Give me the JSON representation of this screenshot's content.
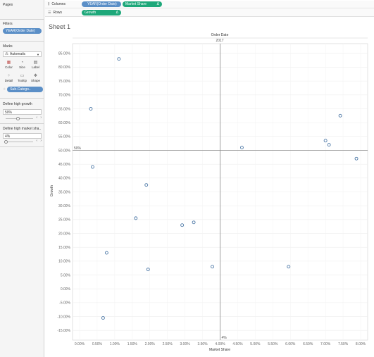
{
  "left_panel": {
    "pages_title": "Pages",
    "filters_title": "Filters",
    "filter_pill": "YEAR(Order Date)",
    "marks_title": "Marks",
    "marks_type": "Automatic",
    "mark_buttons": [
      {
        "label": "Color",
        "icon": "color-icon"
      },
      {
        "label": "Size",
        "icon": "size-icon"
      },
      {
        "label": "Label",
        "icon": "label-icon"
      },
      {
        "label": "Detail",
        "icon": "detail-icon"
      },
      {
        "label": "Tooltip",
        "icon": "tooltip-icon"
      },
      {
        "label": "Shape",
        "icon": "shape-icon"
      }
    ],
    "detail_pill": "Sub-Catego..",
    "param1": {
      "title": "Define high growth",
      "value": "50%",
      "level": 0.5
    },
    "param2": {
      "title": "Define high market sha..",
      "value": "4%",
      "level": 0.0
    }
  },
  "shelves": {
    "columns_label": "Columns",
    "columns_pills": [
      "YEAR(Order Date)",
      "Market Share"
    ],
    "rows_label": "Rows",
    "rows_pills": [
      "Growth"
    ],
    "delta_glyph": "Δ"
  },
  "sheet_title": "Sheet 1",
  "chart_data": {
    "type": "scatter",
    "top_header": "Order Date",
    "column_header": "2017",
    "xlabel": "Market Share",
    "ylabel": "Growth",
    "xlim": [
      -0.2,
      8.2
    ],
    "ylim": [
      -18.5,
      88.5
    ],
    "x_ticks": [
      0.0,
      0.5,
      1.0,
      1.5,
      2.0,
      2.5,
      3.0,
      3.5,
      4.0,
      4.5,
      5.0,
      5.5,
      6.0,
      6.5,
      7.0,
      7.5,
      8.0
    ],
    "x_tick_labels": [
      "0.00%",
      "0.50%",
      "1.00%",
      "1.50%",
      "2.00%",
      "2.50%",
      "3.00%",
      "3.50%",
      "4.00%",
      "4.50%",
      "5.00%",
      "5.50%",
      "6.00%",
      "6.50%",
      "7.00%",
      "7.50%",
      "8.00%"
    ],
    "y_ticks": [
      85,
      80,
      75,
      70,
      65,
      60,
      55,
      50,
      45,
      40,
      35,
      30,
      25,
      20,
      15,
      10,
      5,
      0,
      -5,
      -10,
      -15
    ],
    "y_tick_labels": [
      "85.00%",
      "80.00%",
      "75.00%",
      "70.00%",
      "65.00%",
      "60.00%",
      "55.00%",
      "50.00%",
      "45.00%",
      "40.00%",
      "35.00%",
      "30.00%",
      "25.00%",
      "20.00%",
      "15.00%",
      "10.00%",
      "5.00%",
      "0.00%",
      "-5.00%",
      "-10.00%",
      "-15.00%"
    ],
    "reference_lines": {
      "x": {
        "value": 4.0,
        "label": "4%"
      },
      "y": {
        "value": 50.0,
        "label": "50%"
      }
    },
    "grid": true,
    "marker_color": "#4e79a7",
    "points": [
      {
        "x": 1.12,
        "y": 83.0
      },
      {
        "x": 0.32,
        "y": 65.0
      },
      {
        "x": 0.37,
        "y": 44.0
      },
      {
        "x": 1.9,
        "y": 37.5
      },
      {
        "x": 1.6,
        "y": 25.5
      },
      {
        "x": 2.92,
        "y": 23.0
      },
      {
        "x": 3.25,
        "y": 24.0
      },
      {
        "x": 0.77,
        "y": 13.0
      },
      {
        "x": 1.95,
        "y": 7.0
      },
      {
        "x": 3.78,
        "y": 8.0
      },
      {
        "x": 5.95,
        "y": 8.0
      },
      {
        "x": 0.67,
        "y": -10.5
      },
      {
        "x": 4.62,
        "y": 51.0
      },
      {
        "x": 7.42,
        "y": 62.5
      },
      {
        "x": 7.0,
        "y": 53.5
      },
      {
        "x": 7.1,
        "y": 52.0
      },
      {
        "x": 7.88,
        "y": 47.0
      }
    ]
  }
}
